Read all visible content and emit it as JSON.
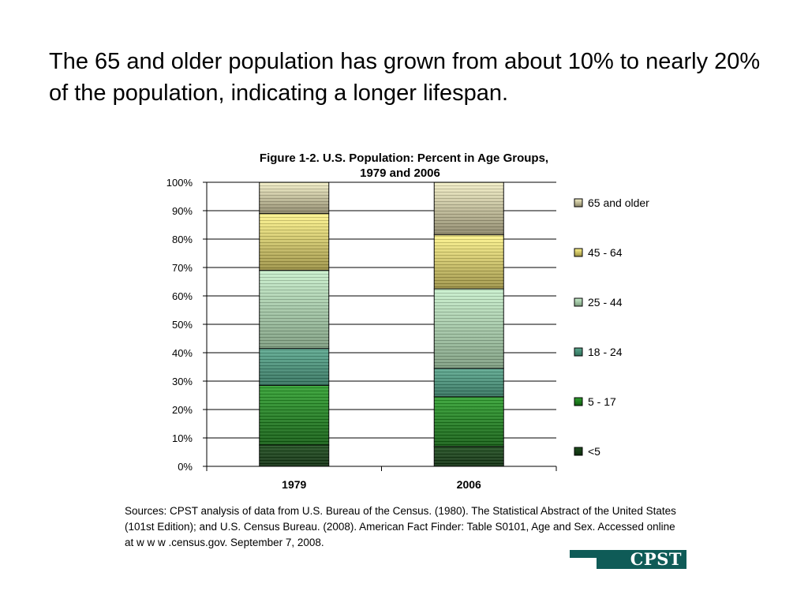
{
  "slide": {
    "title": "The 65 and older population has grown from about 10% to nearly 20% of the population, indicating a longer lifespan.",
    "sources": "Sources: CPST analysis of data from U.S. Bureau of the Census. (1980). The Statistical Abstract of the United States (101st Edition); and U.S. Census Bureau. (2008).  American Fact Finder: Table S0101, Age and Sex. Accessed online at w w w .census.gov. September 7, 2008.",
    "logo_text": "CPST"
  },
  "chart_data": {
    "type": "bar",
    "stacked": true,
    "title": "Figure 1-2. U.S. Population: Percent in Age Groups, 1979 and 2006",
    "title_lines": [
      "Figure 1-2. U.S. Population: Percent in Age Groups,",
      "1979 and 2006"
    ],
    "categories": [
      "1979",
      "2006"
    ],
    "ylim": [
      0,
      100
    ],
    "y_ticks": [
      "0%",
      "10%",
      "20%",
      "30%",
      "40%",
      "50%",
      "60%",
      "70%",
      "80%",
      "90%",
      "100%"
    ],
    "grid": true,
    "legend_position": "right",
    "series": [
      {
        "name": "<5",
        "values": [
          7.5,
          7
        ],
        "color_light": "#1f4f1f",
        "color_dark": "#0b2a0b"
      },
      {
        "name": "5 - 17",
        "values": [
          21,
          17.5
        ],
        "color_light": "#2ea02e",
        "color_dark": "#0f5a0f"
      },
      {
        "name": "18 - 24",
        "values": [
          13,
          10
        ],
        "color_light": "#5aa88e",
        "color_dark": "#2f6f5a"
      },
      {
        "name": "25 - 44",
        "values": [
          27.5,
          28
        ],
        "color_light": "#c8f0cc",
        "color_dark": "#7a9a7c"
      },
      {
        "name": "45 - 64",
        "values": [
          20,
          19
        ],
        "color_light": "#fff58a",
        "color_dark": "#9a8f40"
      },
      {
        "name": "65 and older",
        "values": [
          11,
          18.5
        ],
        "color_light": "#f4f0c6",
        "color_dark": "#8a8466"
      }
    ]
  }
}
